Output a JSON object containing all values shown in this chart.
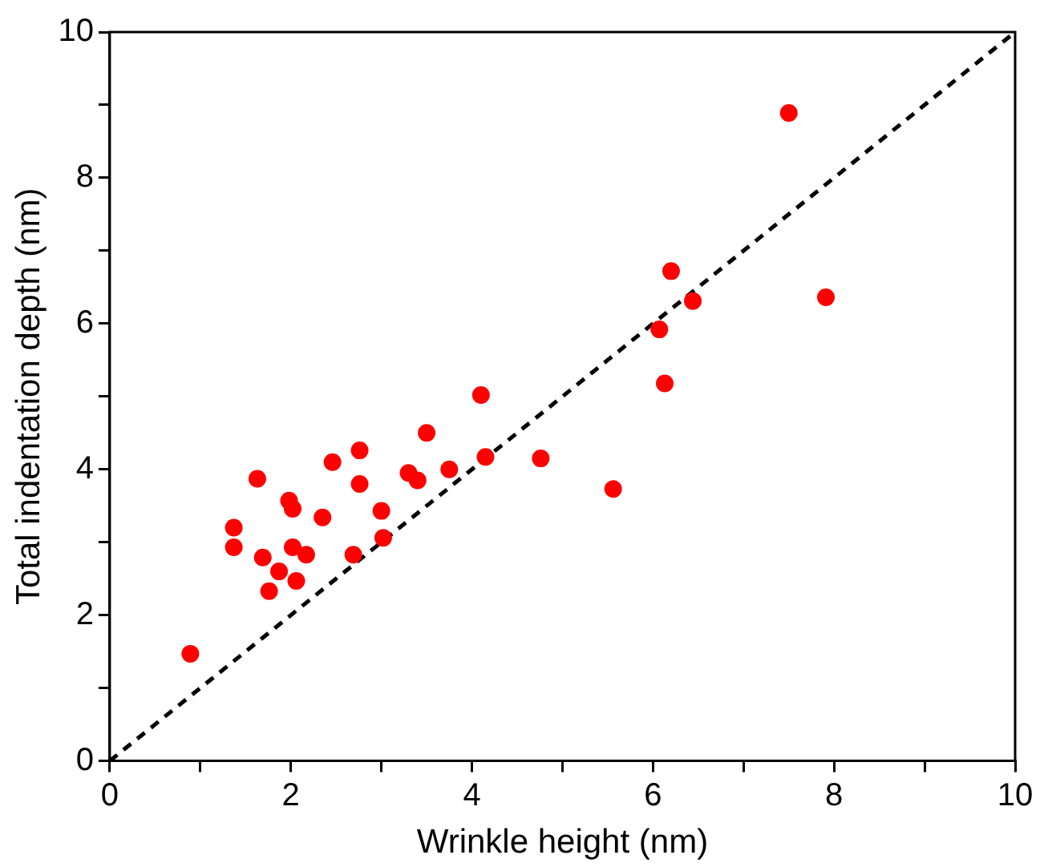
{
  "chart_data": {
    "type": "scatter",
    "xlabel": "Wrinkle height (nm)",
    "ylabel": "Total indentation depth (nm)",
    "xlim": [
      0,
      10
    ],
    "ylim": [
      0,
      10
    ],
    "xticks": [
      0,
      {
        "value": 1,
        "label": null
      },
      2,
      {
        "value": 3,
        "label": null
      },
      4,
      {
        "value": 5,
        "label": null
      },
      6,
      {
        "value": 7,
        "label": null
      },
      8,
      {
        "value": 9,
        "label": null
      },
      10
    ],
    "yticks": [
      0,
      {
        "value": 1,
        "label": null
      },
      2,
      {
        "value": 3,
        "label": null
      },
      4,
      {
        "value": 5,
        "label": null
      },
      6,
      {
        "value": 7,
        "label": null
      },
      8,
      {
        "value": 9,
        "label": null
      },
      10
    ],
    "grid": false,
    "legend": false,
    "marker": "circle",
    "series": [
      {
        "color": "#ff0000",
        "x": [
          0.89,
          1.37,
          1.37,
          1.63,
          1.69,
          1.76,
          1.87,
          1.98,
          2.02,
          2.02,
          2.06,
          2.17,
          2.35,
          2.46,
          2.69,
          2.76,
          2.76,
          3.0,
          3.02,
          3.3,
          3.4,
          3.5,
          3.75,
          4.1,
          4.15,
          4.76,
          5.56,
          6.07,
          6.13,
          6.2,
          6.44,
          7.5,
          7.91
        ],
        "values": [
          1.47,
          3.2,
          2.93,
          3.87,
          2.79,
          2.33,
          2.6,
          3.57,
          3.46,
          2.93,
          2.47,
          2.83,
          3.34,
          4.1,
          2.83,
          4.26,
          3.8,
          3.43,
          3.06,
          3.95,
          3.85,
          4.5,
          4.0,
          5.02,
          4.17,
          4.15,
          3.73,
          5.92,
          5.18,
          6.72,
          6.31,
          8.89,
          6.36
        ]
      },
      {
        "type": "line",
        "color": "#000000",
        "line_style": "dashed",
        "marker": "none",
        "x": [
          0,
          10
        ],
        "values": [
          0,
          10
        ]
      }
    ]
  }
}
